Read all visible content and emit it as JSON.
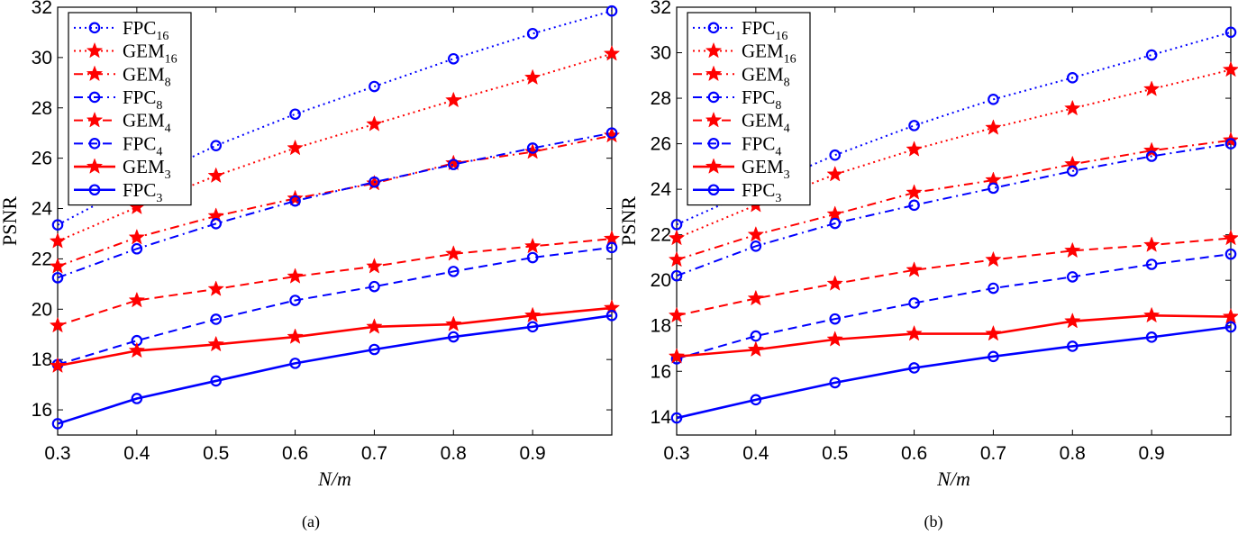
{
  "chart_data": [
    {
      "type": "line",
      "caption": "(a)",
      "xlabel": "N/m",
      "ylabel": "PSNR",
      "xlim": [
        0.3,
        1.0
      ],
      "ylim": [
        15,
        32
      ],
      "xticks": [
        "0.3",
        "0.4",
        "0.5",
        "0.6",
        "0.7",
        "0.8",
        "0.9"
      ],
      "yticks": [
        "16",
        "18",
        "20",
        "22",
        "24",
        "26",
        "28",
        "30",
        "32"
      ],
      "x": [
        0.3,
        0.4,
        0.5,
        0.6,
        0.7,
        0.8,
        0.9,
        1.0
      ],
      "legend_position": "top-left",
      "series": [
        {
          "name": "FPC",
          "sub": "16",
          "color": "#0000ff",
          "dash": "dotted",
          "marker": "circle",
          "values": [
            23.35,
            25.0,
            26.5,
            27.75,
            28.85,
            29.95,
            30.95,
            31.85
          ]
        },
        {
          "name": "GEM",
          "sub": "16",
          "color": "#ff0000",
          "dash": "dotted",
          "marker": "star",
          "values": [
            22.7,
            24.05,
            25.3,
            26.4,
            27.35,
            28.3,
            29.2,
            30.15
          ]
        },
        {
          "name": "GEM",
          "sub": "8",
          "color": "#ff0000",
          "dash": "dashdot",
          "marker": "star",
          "values": [
            21.7,
            22.85,
            23.7,
            24.4,
            25.0,
            25.8,
            26.25,
            26.9
          ]
        },
        {
          "name": "FPC",
          "sub": "8",
          "color": "#0000ff",
          "dash": "dashdot",
          "marker": "circle",
          "values": [
            21.25,
            22.4,
            23.4,
            24.3,
            25.05,
            25.75,
            26.4,
            27.0
          ]
        },
        {
          "name": "GEM",
          "sub": "4",
          "color": "#ff0000",
          "dash": "dashed",
          "marker": "star",
          "values": [
            19.35,
            20.35,
            20.8,
            21.3,
            21.7,
            22.2,
            22.5,
            22.8
          ]
        },
        {
          "name": "FPC",
          "sub": "4",
          "color": "#0000ff",
          "dash": "dashed",
          "marker": "circle",
          "values": [
            17.8,
            18.75,
            19.6,
            20.35,
            20.9,
            21.5,
            22.05,
            22.45
          ]
        },
        {
          "name": "GEM",
          "sub": "3",
          "color": "#ff0000",
          "dash": "solid",
          "marker": "star",
          "values": [
            17.75,
            18.35,
            18.6,
            18.9,
            19.3,
            19.4,
            19.75,
            20.05
          ]
        },
        {
          "name": "FPC",
          "sub": "3",
          "color": "#0000ff",
          "dash": "solid",
          "marker": "circle",
          "values": [
            15.45,
            16.45,
            17.15,
            17.85,
            18.4,
            18.9,
            19.3,
            19.75
          ]
        }
      ]
    },
    {
      "type": "line",
      "caption": "(b)",
      "xlabel": "N/m",
      "ylabel": "PSNR",
      "xlim": [
        0.3,
        1.0
      ],
      "ylim": [
        13.2,
        32
      ],
      "xticks": [
        "0.3",
        "0.4",
        "0.5",
        "0.6",
        "0.7",
        "0.8",
        "0.9"
      ],
      "yticks": [
        "14",
        "16",
        "18",
        "20",
        "22",
        "24",
        "26",
        "28",
        "30",
        "32"
      ],
      "x": [
        0.3,
        0.4,
        0.5,
        0.6,
        0.7,
        0.8,
        0.9,
        1.0
      ],
      "legend_position": "top-left",
      "series": [
        {
          "name": "FPC",
          "sub": "16",
          "color": "#0000ff",
          "dash": "dotted",
          "marker": "circle",
          "values": [
            22.45,
            24.0,
            25.5,
            26.8,
            27.95,
            28.9,
            29.9,
            30.9
          ]
        },
        {
          "name": "GEM",
          "sub": "16",
          "color": "#ff0000",
          "dash": "dotted",
          "marker": "star",
          "values": [
            21.85,
            23.3,
            24.65,
            25.75,
            26.7,
            27.55,
            28.4,
            29.25
          ]
        },
        {
          "name": "GEM",
          "sub": "8",
          "color": "#ff0000",
          "dash": "dashdot",
          "marker": "star",
          "values": [
            20.9,
            22.0,
            22.9,
            23.85,
            24.4,
            25.1,
            25.7,
            26.15
          ]
        },
        {
          "name": "FPC",
          "sub": "8",
          "color": "#0000ff",
          "dash": "dashdot",
          "marker": "circle",
          "values": [
            20.2,
            21.5,
            22.5,
            23.3,
            24.05,
            24.8,
            25.45,
            26.0
          ]
        },
        {
          "name": "GEM",
          "sub": "4",
          "color": "#ff0000",
          "dash": "dashed",
          "marker": "star",
          "values": [
            18.45,
            19.2,
            19.85,
            20.45,
            20.9,
            21.3,
            21.55,
            21.85
          ]
        },
        {
          "name": "FPC",
          "sub": "4",
          "color": "#0000ff",
          "dash": "dashed",
          "marker": "circle",
          "values": [
            16.55,
            17.55,
            18.3,
            19.0,
            19.65,
            20.15,
            20.7,
            21.15
          ]
        },
        {
          "name": "GEM",
          "sub": "3",
          "color": "#ff0000",
          "dash": "solid",
          "marker": "star",
          "values": [
            16.65,
            16.95,
            17.4,
            17.65,
            17.65,
            18.2,
            18.45,
            18.4
          ]
        },
        {
          "name": "FPC",
          "sub": "3",
          "color": "#0000ff",
          "dash": "solid",
          "marker": "circle",
          "values": [
            13.95,
            14.75,
            15.5,
            16.15,
            16.65,
            17.1,
            17.5,
            17.95
          ]
        }
      ]
    }
  ]
}
